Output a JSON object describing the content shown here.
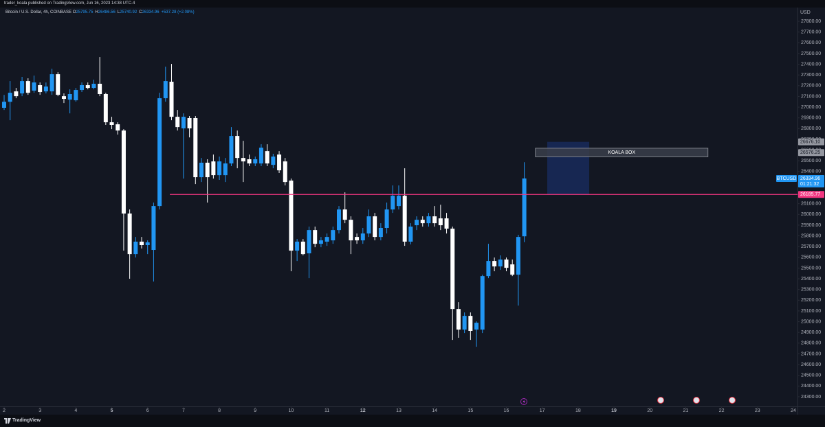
{
  "header": {
    "publisher": "trader_koala published on TradingView.com, Jun 16, 2023 14:38 UTC-4",
    "brand": "TradingView"
  },
  "chart_data": {
    "type": "candlestick",
    "title": "Bitcoin / U.S. Dollar, 4h, COINBASE",
    "currency": "USD",
    "ohlc_labels": [
      "O",
      "H",
      "L",
      "C"
    ],
    "change": "+537.28 (+2.08%)",
    "up_color": "#2196f3",
    "down_color": "#ffffff",
    "grid": false,
    "x": [
      2,
      2.1667,
      2.3333,
      2.5,
      2.6667,
      2.8333,
      3,
      3.1667,
      3.3333,
      3.5,
      3.6667,
      3.8333,
      4,
      4.1667,
      4.3333,
      4.5,
      4.6667,
      4.8333,
      5,
      5.1667,
      5.3333,
      5.5,
      5.6667,
      5.8333,
      6,
      6.1667,
      6.3333,
      6.5,
      6.6667,
      6.8333,
      7,
      7.1667,
      7.3333,
      7.5,
      7.6667,
      7.8333,
      8,
      8.1667,
      8.3333,
      8.5,
      8.6667,
      8.8333,
      9,
      9.1667,
      9.3333,
      9.5,
      9.6667,
      9.8333,
      10,
      10.1667,
      10.3333,
      10.5,
      10.6667,
      10.8333,
      11,
      11.1667,
      11.3333,
      11.5,
      11.6667,
      11.8333,
      12,
      12.1667,
      12.3333,
      12.5,
      12.6667,
      12.8333,
      13,
      13.1667,
      13.3333,
      13.5,
      13.6667,
      13.8333,
      14,
      14.1667,
      14.3333,
      14.5,
      14.6667,
      14.8333,
      15,
      15.1667,
      15.3333,
      15.5,
      15.6667,
      15.8333,
      16,
      16.1667,
      16.3333,
      16.5
    ],
    "open": [
      26994,
      27050,
      27147,
      27128,
      27243,
      27154,
      27205,
      27147,
      27147,
      27307,
      27102,
      27070,
      27064,
      27160,
      27205,
      27179,
      27218,
      27122,
      26859,
      26840,
      26782,
      26008,
      25630,
      25746,
      25714,
      25669,
      26078,
      27083,
      27237,
      26910,
      26802,
      26898,
      26898,
      26347,
      26482,
      26494,
      26366,
      26366,
      26475,
      26731,
      26526,
      26514,
      26475,
      26475,
      26590,
      26462,
      26558,
      26494,
      26315,
      25662,
      25746,
      25637,
      25854,
      25726,
      25746,
      25758,
      25854,
      26046,
      25950,
      25790,
      25758,
      25822,
      25982,
      25790,
      25874,
      26046,
      26078,
      26174,
      25746,
      25899,
      25950,
      25918,
      25982,
      25963,
      25963,
      25867,
      25118,
      24926,
      25054,
      24926,
      24926,
      25425,
      25566,
      25515,
      25579,
      25534,
      25438,
      25795.75
    ],
    "high": [
      27114,
      27243,
      27179,
      27282,
      27269,
      27294,
      27230,
      27230,
      27358,
      27326,
      27128,
      27166,
      27179,
      27230,
      27230,
      27256,
      27467,
      27134,
      26910,
      26859,
      26795,
      26046,
      25790,
      25790,
      25758,
      26110,
      27134,
      27377,
      27403,
      26974,
      26942,
      26917,
      26917,
      26526,
      26514,
      26558,
      26539,
      26526,
      26814,
      26782,
      26686,
      26558,
      26539,
      26654,
      26654,
      26565,
      26590,
      26526,
      26334,
      25771,
      25771,
      25886,
      25886,
      25790,
      25822,
      25886,
      26078,
      26206,
      25982,
      25822,
      25874,
      26046,
      26014,
      25918,
      26110,
      26270,
      26270,
      26430,
      25918,
      25982,
      25982,
      26014,
      26078,
      26090,
      26014,
      25886,
      25182,
      25086,
      25086,
      25003,
      25438,
      25726,
      25598,
      25618,
      25598,
      25579,
      25810,
      26486.56
    ],
    "low": [
      26974,
      26878,
      27083,
      27102,
      27115,
      27134,
      27115,
      27128,
      27115,
      27102,
      27038,
      26942,
      27051,
      27141,
      27166,
      27166,
      27102,
      26834,
      26795,
      26744,
      25662,
      25400,
      25598,
      25682,
      25630,
      25374,
      26046,
      27051,
      26878,
      26782,
      26334,
      26718,
      26283,
      26302,
      26110,
      26334,
      26322,
      26302,
      26450,
      26430,
      26302,
      26450,
      26450,
      26450,
      26450,
      26430,
      26386,
      26270,
      25470,
      25566,
      25618,
      25406,
      25694,
      25694,
      25707,
      25726,
      25822,
      25918,
      25630,
      25726,
      25726,
      25790,
      25758,
      25758,
      25822,
      26014,
      26046,
      25707,
      25720,
      25854,
      25886,
      25886,
      25886,
      25854,
      25822,
      24830,
      24850,
      24894,
      24830,
      24766,
      24894,
      25406,
      25470,
      25483,
      25470,
      25425,
      25150,
      25740.92
    ],
    "close": [
      27050,
      27134,
      27102,
      27243,
      27134,
      27230,
      27141,
      27192,
      27307,
      27115,
      27077,
      27122,
      27160,
      27205,
      27179,
      27218,
      27122,
      26859,
      26834,
      26782,
      26008,
      25630,
      25746,
      25714,
      25739,
      26078,
      27083,
      27243,
      26910,
      26814,
      26910,
      26802,
      26347,
      26482,
      26347,
      26366,
      26494,
      26475,
      26731,
      26526,
      26494,
      26475,
      26514,
      26622,
      26475,
      26539,
      26411,
      26302,
      25662,
      25746,
      25630,
      25854,
      25726,
      25758,
      25790,
      25854,
      26046,
      25950,
      25758,
      25758,
      25822,
      25982,
      25790,
      25874,
      26046,
      26174,
      26174,
      25746,
      25886,
      25950,
      25918,
      25982,
      25918,
      25899,
      25867,
      25118,
      24926,
      25054,
      24914,
      24990,
      25425,
      25566,
      25515,
      25579,
      25502,
      25438,
      25790,
      26334.96
    ],
    "xlim": [
      1.885,
      24.116
    ],
    "xticks": [
      2,
      3,
      4,
      5,
      6,
      7,
      8,
      9,
      10,
      11,
      12,
      13,
      14,
      15,
      16,
      17,
      18,
      19,
      20,
      21,
      22,
      23,
      24
    ],
    "bold_xticks": [
      5,
      12,
      19
    ],
    "ylim": [
      24210,
      27922
    ],
    "yticks": [
      {
        "value": 24300,
        "label": "24300.00"
      },
      {
        "value": 24400,
        "label": "24400.00"
      },
      {
        "value": 24500,
        "label": "24500.00"
      },
      {
        "value": 24600,
        "label": "24600.00"
      },
      {
        "value": 24700,
        "label": "24700.00"
      },
      {
        "value": 24800,
        "label": "24800.00"
      },
      {
        "value": 24900,
        "label": "24900.00"
      },
      {
        "value": 25000,
        "label": "25000.00"
      },
      {
        "value": 25100,
        "label": "25100.00"
      },
      {
        "value": 25200,
        "label": "25200.00"
      },
      {
        "value": 25300,
        "label": "25300.00"
      },
      {
        "value": 25400,
        "label": "25400.00"
      },
      {
        "value": 25500,
        "label": "25500.00"
      },
      {
        "value": 25600,
        "label": "25600.00"
      },
      {
        "value": 25700,
        "label": "25700.00"
      },
      {
        "value": 25800,
        "label": "25800.00"
      },
      {
        "value": 25900,
        "label": "25900.00"
      },
      {
        "value": 26000,
        "label": "26000.00"
      },
      {
        "value": 26100,
        "label": "26100.00"
      },
      {
        "value": 26200,
        "label": "26200.00"
      },
      {
        "value": 26300,
        "label": "26300.00"
      },
      {
        "value": 26400,
        "label": "26400.00"
      },
      {
        "value": 26500,
        "label": "26500.00"
      },
      {
        "value": 26600,
        "label": "26600.00"
      },
      {
        "value": 26700,
        "label": "26700.00"
      },
      {
        "value": 26800,
        "label": "26800.00"
      },
      {
        "value": 26900,
        "label": "26900.00"
      },
      {
        "value": 27000,
        "label": "27000.00"
      },
      {
        "value": 27100,
        "label": "27100.00"
      },
      {
        "value": 27200,
        "label": "27200.00"
      },
      {
        "value": 27300,
        "label": "27300.00"
      },
      {
        "value": 27400,
        "label": "27400.00"
      },
      {
        "value": 27500,
        "label": "27500.00"
      },
      {
        "value": 27600,
        "label": "27600.00"
      },
      {
        "value": 27700,
        "label": "27700.00"
      },
      {
        "value": 27800,
        "label": "27800.00"
      }
    ],
    "hline": {
      "value": 26185.77,
      "x_start": 6.62,
      "color": "#f23680"
    },
    "shaded_box": {
      "x": [
        17.14,
        18.31
      ],
      "y": [
        26676.1,
        26185.77
      ],
      "color": "#2962ff"
    },
    "koala_box": {
      "label": "KOALA BOX",
      "x": [
        16.81,
        21.62
      ],
      "y": [
        26617,
        26537
      ],
      "color": "#3a3e4a"
    },
    "price_labels": [
      {
        "value": 26676.1,
        "label": "26676.10"
      },
      26576.25
    ],
    "symbol_tag": "BTCUSD",
    "countdown": "01:21:32"
  }
}
